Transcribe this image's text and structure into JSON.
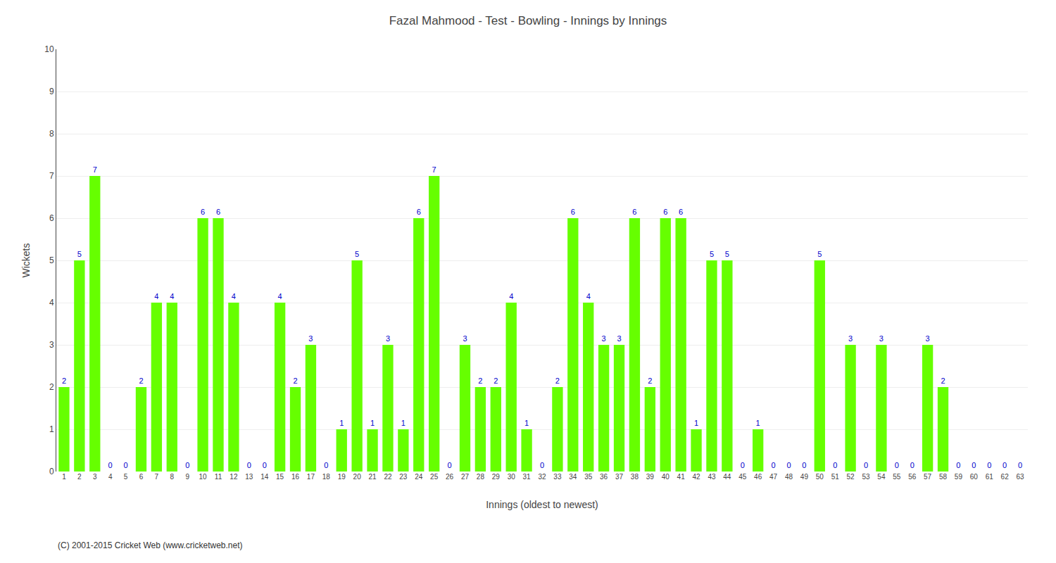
{
  "chart_data": {
    "type": "bar",
    "title": "Fazal Mahmood - Test - Bowling - Innings by Innings",
    "x_label": "Innings (oldest to newest)",
    "y_label": "Wickets",
    "annotations": [
      "(C) 2001-2015 Cricket Web (www.cricketweb.net)"
    ],
    "categories": [
      "1",
      "2",
      "3",
      "4",
      "5",
      "6",
      "7",
      "8",
      "9",
      "10",
      "11",
      "12",
      "13",
      "14",
      "15",
      "16",
      "17",
      "18",
      "19",
      "20",
      "21",
      "22",
      "23",
      "24",
      "25",
      "26",
      "27",
      "28",
      "29",
      "30",
      "31",
      "32",
      "33",
      "34",
      "35",
      "36",
      "37",
      "38",
      "39",
      "40",
      "41",
      "42",
      "43",
      "44",
      "45",
      "46",
      "47",
      "48",
      "49",
      "50",
      "51",
      "52",
      "53",
      "54",
      "55",
      "56",
      "57",
      "58",
      "59",
      "60",
      "61",
      "62",
      "63"
    ],
    "values": [
      2,
      5,
      7,
      0,
      0,
      2,
      4,
      4,
      0,
      6,
      6,
      4,
      0,
      0,
      4,
      2,
      3,
      0,
      1,
      5,
      1,
      3,
      1,
      6,
      7,
      0,
      3,
      2,
      2,
      4,
      1,
      0,
      2,
      6,
      4,
      3,
      3,
      6,
      2,
      6,
      6,
      1,
      5,
      5,
      0,
      1,
      0,
      0,
      0,
      5,
      0,
      3,
      0,
      3,
      0,
      0,
      3,
      2,
      0,
      0,
      0,
      0,
      0
    ],
    "color": "#66FF00",
    "ylim": [
      0,
      10
    ],
    "yticks": [
      0,
      1,
      2,
      3,
      4,
      5,
      6,
      7,
      8,
      9,
      10
    ],
    "grid": true,
    "data_labels": true
  }
}
